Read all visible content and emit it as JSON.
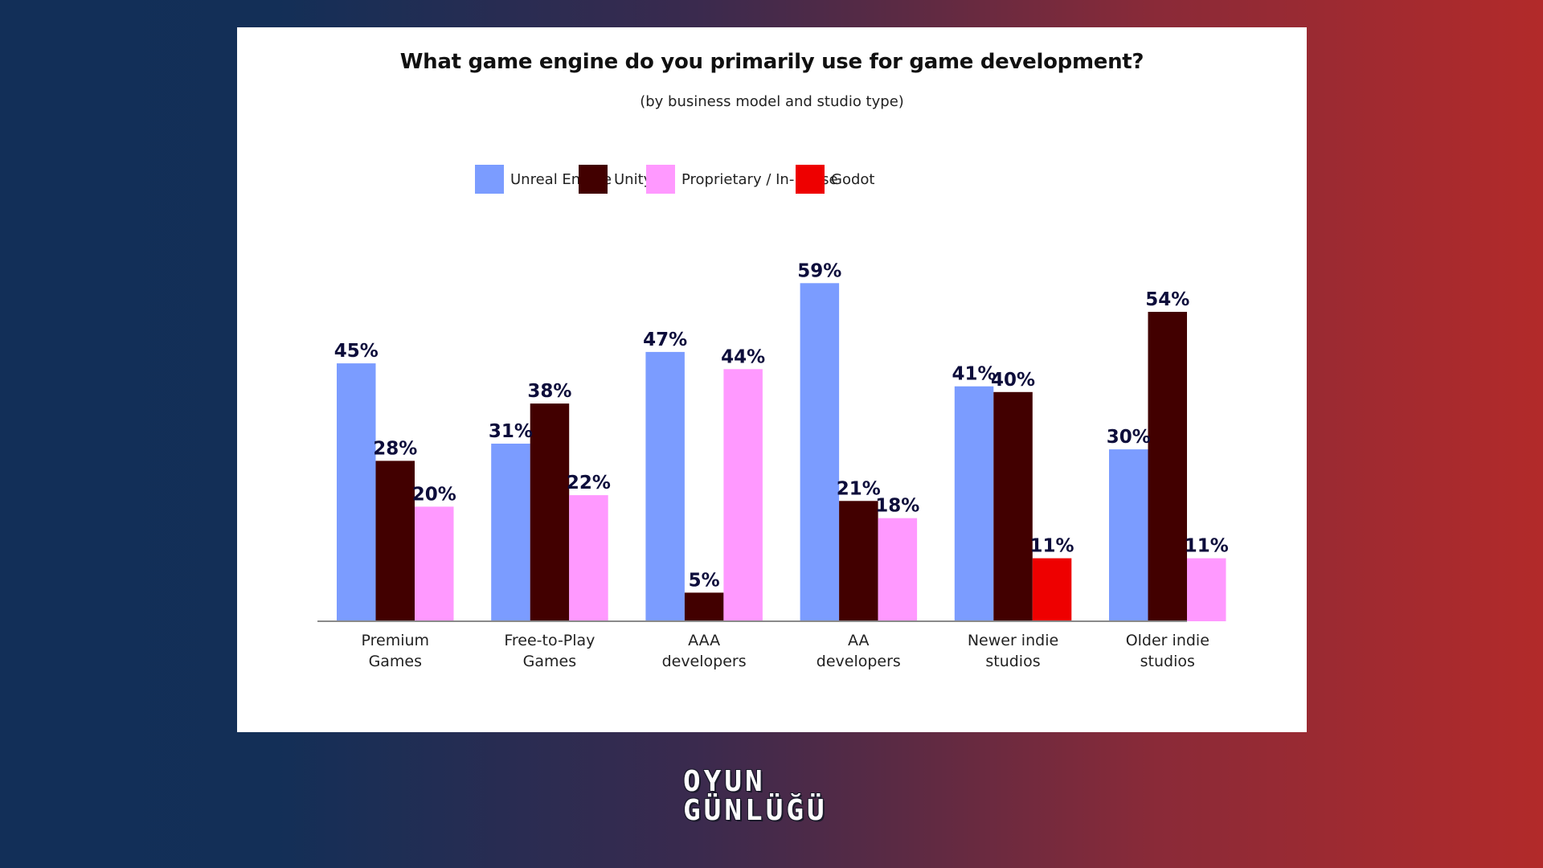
{
  "chart_data": {
    "type": "bar",
    "title": "What game engine do you primarily use for game development?",
    "subtitle": "(by business model and studio type)",
    "xlabel": "",
    "ylabel": "",
    "ylim": [
      0,
      60
    ],
    "grid": false,
    "legend_position": "top-center",
    "value_format": "percent",
    "categories": [
      [
        "Premium",
        "Games"
      ],
      [
        "Free-to-Play",
        "Games"
      ],
      [
        "AAA",
        "developers"
      ],
      [
        "AA",
        "developers"
      ],
      [
        "Newer indie",
        "studios"
      ],
      [
        "Older indie",
        "studios"
      ]
    ],
    "series": [
      {
        "name": "Unreal Engine",
        "color": "#7b9cff"
      },
      {
        "name": "Unity",
        "color": "#420000"
      },
      {
        "name": "Proprietary / In-house",
        "color": "#ff99ff"
      },
      {
        "name": "Godot",
        "color": "#ee0000"
      }
    ],
    "groups": [
      {
        "category": "Premium Games",
        "bars": [
          {
            "series": "Unreal Engine",
            "value": 45
          },
          {
            "series": "Unity",
            "value": 28
          },
          {
            "series": "Proprietary / In-house",
            "value": 20
          }
        ]
      },
      {
        "category": "Free-to-Play Games",
        "bars": [
          {
            "series": "Unreal Engine",
            "value": 31
          },
          {
            "series": "Unity",
            "value": 38
          },
          {
            "series": "Proprietary / In-house",
            "value": 22
          }
        ]
      },
      {
        "category": "AAA developers",
        "bars": [
          {
            "series": "Unreal Engine",
            "value": 47
          },
          {
            "series": "Unity",
            "value": 5
          },
          {
            "series": "Proprietary / In-house",
            "value": 44
          }
        ]
      },
      {
        "category": "AA developers",
        "bars": [
          {
            "series": "Unreal Engine",
            "value": 59
          },
          {
            "series": "Unity",
            "value": 21
          },
          {
            "series": "Proprietary / In-house",
            "value": 18
          }
        ]
      },
      {
        "category": "Newer indie studios",
        "bars": [
          {
            "series": "Unreal Engine",
            "value": 41
          },
          {
            "series": "Unity",
            "value": 40
          },
          {
            "series": "Godot",
            "value": 11
          }
        ]
      },
      {
        "category": "Older indie studios",
        "bars": [
          {
            "series": "Unreal Engine",
            "value": 30
          },
          {
            "series": "Unity",
            "value": 54
          },
          {
            "series": "Proprietary / In-house",
            "value": 11
          }
        ]
      }
    ]
  },
  "branding": {
    "logo_line1": "OYUN",
    "logo_line2": "GÜNLÜĞÜ"
  }
}
